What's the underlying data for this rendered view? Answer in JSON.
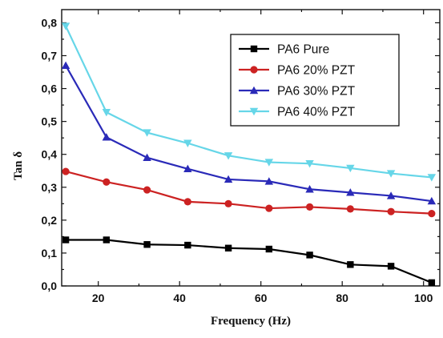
{
  "chart_data": {
    "type": "line",
    "xlabel": "Frequency (Hz)",
    "ylabel": "Tan δ",
    "xlim": [
      11,
      104
    ],
    "ylim": [
      0.0,
      0.84
    ],
    "xticks": [
      20,
      40,
      60,
      80,
      100
    ],
    "yticks": [
      0.0,
      0.1,
      0.2,
      0.3,
      0.4,
      0.5,
      0.6,
      0.7,
      0.8
    ],
    "ytick_labels": [
      "0,0",
      "0,1",
      "0,2",
      "0,3",
      "0,4",
      "0,5",
      "0,6",
      "0,7",
      "0,8"
    ],
    "legend_position": "top-right",
    "grid": false,
    "x": [
      12,
      22,
      32,
      42,
      52,
      62,
      72,
      82,
      92,
      102
    ],
    "series": [
      {
        "name": "PA6 Pure",
        "color": "#000000",
        "marker": "square",
        "values": [
          0.14,
          0.14,
          0.126,
          0.124,
          0.115,
          0.112,
          0.094,
          0.065,
          0.06,
          0.01
        ]
      },
      {
        "name": "PA6 20% PZT",
        "color": "#cc2222",
        "marker": "circle",
        "values": [
          0.348,
          0.316,
          0.292,
          0.256,
          0.25,
          0.236,
          0.24,
          0.234,
          0.226,
          0.22
        ]
      },
      {
        "name": "PA6 30% PZT",
        "color": "#2a2ab8",
        "marker": "triangle-up",
        "values": [
          0.67,
          0.452,
          0.39,
          0.356,
          0.324,
          0.318,
          0.294,
          0.284,
          0.274,
          0.258
        ]
      },
      {
        "name": "PA6 40% PZT",
        "color": "#66d6e8",
        "marker": "triangle-down",
        "values": [
          0.79,
          0.528,
          0.466,
          0.434,
          0.396,
          0.376,
          0.372,
          0.358,
          0.342,
          0.33
        ]
      }
    ]
  }
}
